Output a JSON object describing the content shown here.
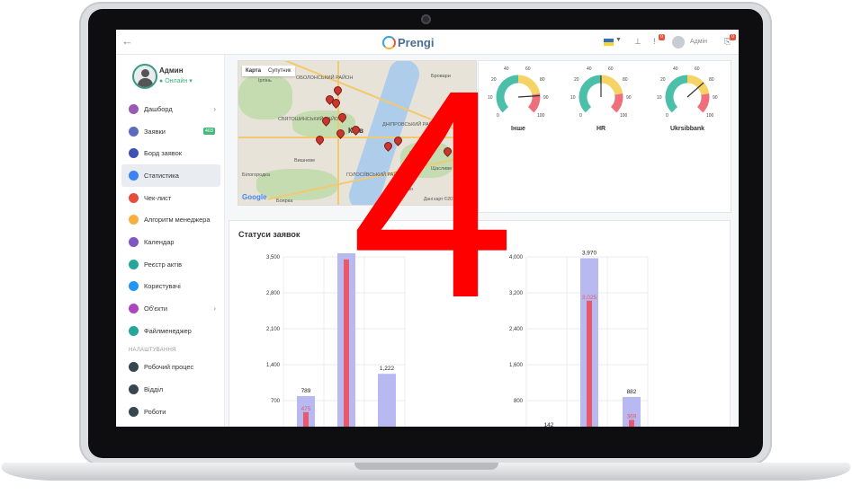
{
  "overlay": {
    "number": "4"
  },
  "brand": {
    "name": "Prengi"
  },
  "topbar": {
    "user_name": "Адмін",
    "bell_count": "0",
    "msg_count": "0"
  },
  "profile": {
    "name": "Админ",
    "status": "Онлайн"
  },
  "sidebar": {
    "items": [
      {
        "label": "Дашборд",
        "icon": "dashboard-icon",
        "color": "#9b59b6",
        "chevron": "›"
      },
      {
        "label": "Заявки",
        "icon": "requests-icon",
        "color": "#5c6bc0",
        "count": "403"
      },
      {
        "label": "Борд заявок",
        "icon": "board-icon",
        "color": "#3f51b5"
      },
      {
        "label": "Статистика",
        "icon": "stats-icon",
        "color": "#3b82f6"
      },
      {
        "label": "Чек-лист",
        "icon": "checklist-icon",
        "color": "#e74c3c"
      },
      {
        "label": "Алгоритм менеджера",
        "icon": "algorithm-icon",
        "color": "#f5b041"
      },
      {
        "label": "Календар",
        "icon": "calendar-icon",
        "color": "#7e57c2"
      },
      {
        "label": "Реєстр актів",
        "icon": "registry-icon",
        "color": "#26a69a"
      },
      {
        "label": "Користувачі",
        "icon": "users-icon",
        "color": "#2196f3"
      },
      {
        "label": "Об'єкти",
        "icon": "objects-icon",
        "color": "#ab47bc",
        "chevron": "›"
      },
      {
        "label": "Файлменеджер",
        "icon": "file-manager-icon",
        "color": "#26a69a"
      }
    ],
    "section_label": "НАЛАШТУВАННЯ",
    "settings_items": [
      {
        "label": "Робочий процес",
        "icon": "workflow-icon",
        "color": "#37474f"
      },
      {
        "label": "Відділ",
        "icon": "department-icon",
        "color": "#37474f"
      },
      {
        "label": "Роботи",
        "icon": "works-icon",
        "color": "#37474f"
      }
    ]
  },
  "map": {
    "tabs": [
      "Карта",
      "Супутник"
    ],
    "city_label": "Київ",
    "labels": [
      "Ірпінь",
      "ОБОЛОНСЬКИЙ РАЙОН",
      "Бровари",
      "СВЯТОШИНСЬКИЙ РАЙОН",
      "ДНІПРОВСЬКИЙ РАЙОН",
      "Вишневе",
      "Білогородка",
      "Боярка",
      "Щасливе",
      "ГОЛОСІЇВСЬКИЙ РАЙОН",
      "Осокорки",
      "Пирогово"
    ],
    "provider": "Google",
    "copyright": "Дані карт ©2017 Google"
  },
  "gauges": [
    {
      "label": "Інше",
      "ticks": [
        "10",
        "20",
        "30",
        "40",
        "50",
        "60",
        "70",
        "80",
        "90",
        "100"
      ],
      "value": 0.82
    },
    {
      "label": "HR",
      "ticks": [
        "10",
        "20",
        "30",
        "40",
        "50",
        "60",
        "70",
        "80",
        "90",
        "100"
      ],
      "value": 0.5
    },
    {
      "label": "Ukrsibbank",
      "ticks": [
        "10",
        "20",
        "30",
        "40",
        "50",
        "60",
        "70",
        "80",
        "90",
        "100"
      ],
      "value": 0.68
    }
  ],
  "gauge_ticks_visible": [
    "40",
    "60",
    "20",
    "80",
    "0",
    "100",
    "10",
    "90"
  ],
  "status_panel": {
    "title": "Статуси заявок"
  },
  "chart_data": [
    {
      "type": "bar",
      "title": "",
      "yticks": [
        "3,500",
        "2,800",
        "2,100",
        "1,400",
        "700"
      ],
      "ylim": [
        0,
        3500
      ],
      "series": [
        {
          "values": [
            789,
            3600,
            1222
          ]
        },
        {
          "values": [
            475,
            3450,
            null
          ]
        }
      ],
      "labels": [
        "789",
        "",
        "1,222"
      ],
      "red_labels": [
        "475",
        "",
        ""
      ]
    },
    {
      "type": "bar",
      "title": "",
      "yticks": [
        "4,000",
        "3,200",
        "2,400",
        "1,600",
        "800"
      ],
      "ylim": [
        0,
        4000
      ],
      "series": [
        {
          "values": [
            142,
            3970,
            882
          ]
        },
        {
          "values": [
            null,
            3025,
            369
          ]
        }
      ],
      "labels": [
        "142",
        "3,970",
        "882"
      ],
      "red_labels": [
        "",
        "3,025",
        "369"
      ]
    }
  ]
}
